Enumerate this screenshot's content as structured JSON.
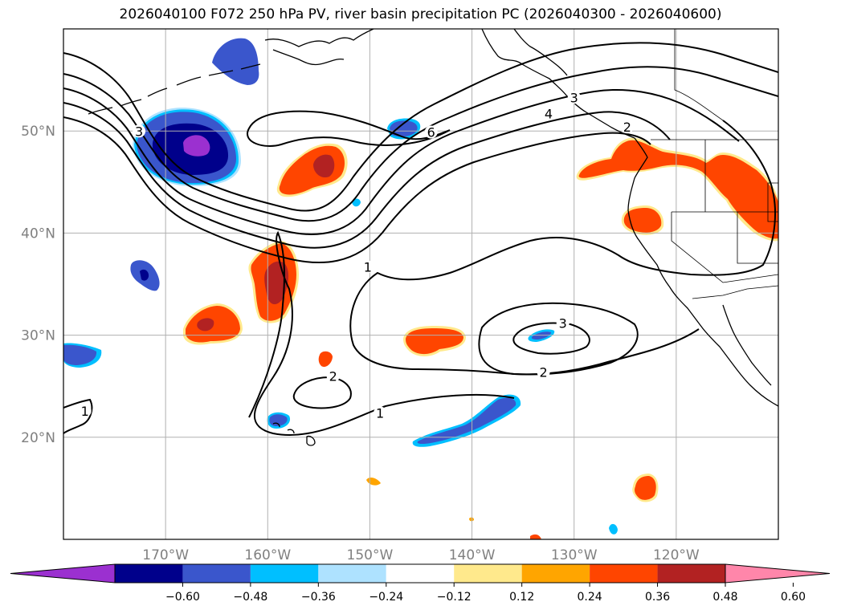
{
  "title": "2026040100 F072 250 hPa PV, river basin precipitation PC (2026040300 - 2026040600)",
  "colors": {
    "frame": "#000000",
    "grid": "#b0b0b0",
    "coast": "#000000",
    "contour": "#000000",
    "levels": [
      "#9b30d0",
      "#00008b",
      "#3a56cc",
      "#00bfff",
      "#aee2ff",
      "#ffffff",
      "#ffe98c",
      "#ffa500",
      "#ff4500",
      "#b22222",
      "#ff86aa"
    ]
  },
  "latitude_labels": [
    "50°N",
    "40°N",
    "30°N",
    "20°N"
  ],
  "longitude_labels": [
    "170°W",
    "160°W",
    "150°W",
    "140°W",
    "130°W",
    "120°W"
  ],
  "colorbar": {
    "ticks": [
      "−0.60",
      "−0.48",
      "−0.36",
      "−0.24",
      "−0.12",
      "0.12",
      "0.24",
      "0.36",
      "0.48",
      "0.60"
    ]
  },
  "contour_labels": [
    {
      "text": "3",
      "lon": -172.6,
      "lat": 49.6
    },
    {
      "text": "6",
      "lon": -144.0,
      "lat": 49.5
    },
    {
      "text": "4",
      "lon": -132.5,
      "lat": 51.3
    },
    {
      "text": "3",
      "lon": -130.0,
      "lat": 52.9
    },
    {
      "text": "2",
      "lon": -124.8,
      "lat": 50.0
    },
    {
      "text": "1",
      "lon": -150.2,
      "lat": 36.3
    },
    {
      "text": "3",
      "lon": -131.1,
      "lat": 30.8
    },
    {
      "text": "2",
      "lon": -133.0,
      "lat": 26.0
    },
    {
      "text": "2",
      "lon": -153.6,
      "lat": 25.6
    },
    {
      "text": "1",
      "lon": -149.0,
      "lat": 22.0
    },
    {
      "text": "1",
      "lon": -177.9,
      "lat": 22.2
    }
  ],
  "chart_data": {
    "type": "map",
    "title": "2026040100 F072 250 hPa PV, river basin precipitation PC (2026040300 - 2026040600)",
    "projection": "plate carree",
    "lon_range": [
      -180,
      -110
    ],
    "lat_range": [
      10,
      60
    ],
    "field_shaded": "river basin precipitation PC",
    "field_contoured": "250 hPa PV",
    "contour_levels": [
      1,
      2,
      3,
      4,
      5,
      6
    ],
    "colorbar_ticks": [
      -0.6,
      -0.48,
      -0.36,
      -0.24,
      -0.12,
      0.12,
      0.24,
      0.36,
      0.48,
      0.6
    ],
    "colorbar_extend": "both"
  }
}
